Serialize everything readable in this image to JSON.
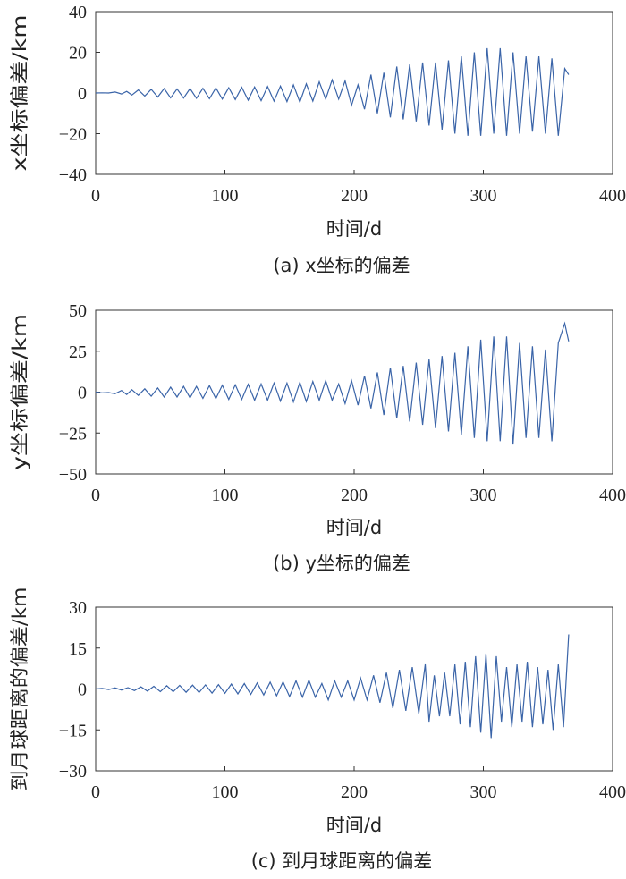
{
  "chart_data": [
    {
      "type": "line",
      "xlabel": "时间/d",
      "ylabel": "x坐标偏差/km",
      "caption": "(a) x坐标的偏差",
      "xlim": [
        0,
        400
      ],
      "ylim": [
        -40,
        40
      ],
      "xticks": [
        0,
        100,
        200,
        300,
        400
      ],
      "yticks": [
        40,
        20,
        0,
        -20,
        -40
      ],
      "series": [
        {
          "color": "#3a64a8",
          "x": [
            0,
            5,
            10,
            15,
            20,
            24,
            28,
            33,
            38,
            43,
            48,
            53,
            58,
            63,
            68,
            73,
            78,
            83,
            88,
            93,
            98,
            103,
            108,
            113,
            118,
            123,
            128,
            133,
            138,
            143,
            148,
            153,
            158,
            163,
            168,
            173,
            178,
            183,
            188,
            193,
            198,
            203,
            208,
            213,
            218,
            223,
            228,
            233,
            238,
            243,
            248,
            253,
            258,
            263,
            268,
            273,
            278,
            283,
            288,
            293,
            298,
            303,
            308,
            313,
            318,
            323,
            328,
            333,
            338,
            343,
            348,
            353,
            358,
            363,
            366
          ],
          "y": [
            0,
            0.1,
            0,
            0.5,
            -0.5,
            0.8,
            -1,
            1.5,
            -1.5,
            1.8,
            -2,
            2.2,
            -2.4,
            2,
            -2.5,
            2.2,
            -2.6,
            2.3,
            -2.8,
            2.5,
            -3,
            2.6,
            -3.2,
            2.8,
            -3.5,
            3,
            -3.8,
            3.2,
            -4,
            3.4,
            -4.2,
            4,
            -4.5,
            4.5,
            -4,
            5.5,
            -3,
            6.5,
            -3,
            6,
            -6,
            4,
            -8,
            9,
            -10,
            10,
            -12,
            13,
            -13,
            14,
            -14,
            15,
            -16,
            15,
            -18,
            16,
            -20,
            18,
            -21,
            20,
            -21,
            22,
            -20,
            22,
            -21,
            20,
            -20,
            18,
            -19,
            18,
            -20,
            17,
            -21,
            12,
            9
          ]
        }
      ]
    },
    {
      "type": "line",
      "xlabel": "时间/d",
      "ylabel": "y坐标偏差/km",
      "caption": "(b) y坐标的偏差",
      "xlim": [
        0,
        400
      ],
      "ylim": [
        -50,
        50
      ],
      "xticks": [
        0,
        100,
        200,
        300,
        400
      ],
      "yticks": [
        50,
        25,
        0,
        -25,
        -50
      ],
      "series": [
        {
          "color": "#3a64a8",
          "x": [
            0,
            5,
            10,
            15,
            20,
            24,
            28,
            33,
            38,
            43,
            48,
            53,
            58,
            63,
            68,
            73,
            78,
            83,
            88,
            93,
            98,
            103,
            108,
            113,
            118,
            123,
            128,
            133,
            138,
            143,
            148,
            153,
            158,
            163,
            168,
            173,
            178,
            183,
            188,
            193,
            198,
            203,
            208,
            213,
            218,
            223,
            228,
            233,
            238,
            243,
            248,
            253,
            258,
            263,
            268,
            273,
            278,
            283,
            288,
            293,
            298,
            303,
            308,
            313,
            318,
            323,
            328,
            333,
            338,
            343,
            348,
            353,
            358,
            363,
            366
          ],
          "y": [
            0,
            -0.5,
            -0.3,
            -1,
            1,
            -1.5,
            1.5,
            -2,
            2,
            -2.5,
            2.5,
            -3,
            3,
            -3,
            3.5,
            -3.5,
            3.5,
            -3.8,
            4,
            -4,
            4.2,
            -4.5,
            4.5,
            -4.5,
            4.8,
            -5,
            5,
            -5,
            5.5,
            -5.5,
            5.5,
            -6,
            6,
            -5.8,
            6.5,
            -5,
            7,
            -5,
            5,
            -7,
            7,
            -8,
            10,
            -10,
            12,
            -14,
            15,
            -16,
            16,
            -18,
            18,
            -20,
            20,
            -22,
            22,
            -24,
            24,
            -26,
            28,
            -28,
            32,
            -30,
            34,
            -30,
            34,
            -32,
            30,
            -28,
            28,
            -28,
            26,
            -30,
            30,
            42,
            31
          ]
        }
      ]
    },
    {
      "type": "line",
      "xlabel": "时间/d",
      "ylabel": "到月球距离的偏差/km",
      "caption": "(c) 到月球距离的偏差",
      "xlim": [
        0,
        400
      ],
      "ylim": [
        -30,
        30
      ],
      "xticks": [
        0,
        100,
        200,
        300,
        400
      ],
      "yticks": [
        30,
        15,
        0,
        -15,
        -30
      ],
      "series": [
        {
          "color": "#3a64a8",
          "x": [
            0,
            5,
            10,
            15,
            20,
            25,
            30,
            35,
            40,
            45,
            50,
            55,
            60,
            65,
            70,
            75,
            80,
            85,
            90,
            95,
            100,
            105,
            110,
            115,
            120,
            125,
            130,
            135,
            140,
            145,
            150,
            155,
            160,
            165,
            170,
            175,
            180,
            185,
            190,
            195,
            200,
            205,
            210,
            215,
            220,
            225,
            230,
            235,
            240,
            245,
            250,
            255,
            258,
            262,
            266,
            270,
            274,
            278,
            282,
            286,
            290,
            294,
            298,
            302,
            306,
            310,
            314,
            318,
            322,
            326,
            330,
            334,
            338,
            342,
            346,
            350,
            354,
            358,
            362,
            366
          ],
          "y": [
            0,
            0.2,
            -0.2,
            0.4,
            -0.4,
            0.5,
            -0.6,
            0.8,
            -0.8,
            1,
            -1,
            1.2,
            -1,
            1.3,
            -1.2,
            1.4,
            -1.3,
            1.5,
            -1.5,
            1.6,
            -1.6,
            1.8,
            -1.8,
            2,
            -2,
            2.2,
            -2.2,
            2.5,
            -2.5,
            2.6,
            -2.8,
            3,
            -3,
            3.2,
            -3,
            2,
            -4,
            3,
            -3,
            3,
            -4,
            4,
            -4,
            5,
            -5,
            6,
            -7,
            7,
            -8,
            8,
            -9,
            9,
            -12,
            5,
            -10,
            6,
            -10,
            9,
            -13,
            10,
            -14,
            12,
            -16,
            13,
            -18,
            12,
            -12,
            8,
            -14,
            9,
            -12,
            10,
            -14,
            8,
            -13,
            7,
            -15,
            9,
            -14,
            20
          ]
        }
      ]
    }
  ]
}
